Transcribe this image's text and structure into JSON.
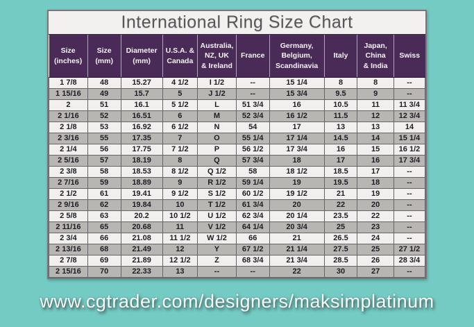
{
  "title": "International Ring Size Chart",
  "footer": {
    "url": "www.cgtrader.com/designers/maksimplatinum"
  },
  "colors": {
    "page-bg": "#74cbc4",
    "title-bg": "#f2f1ef",
    "title-text": "#57575a",
    "header-bg": "#4a2b58",
    "header-text": "#f5f2f7",
    "row-light": "#f1f0ee",
    "row-dark": "#b7b6b3",
    "cell-text": "#1d1d26",
    "grid-line": "#646467",
    "footer-text": "#fbfdfc"
  },
  "chart_data": {
    "type": "table",
    "title": "International Ring Size Chart",
    "columns": [
      "Size\n(inches)",
      "Size\n(mm)",
      "Diameter\n(mm)",
      "U.S.A. &\nCanada",
      "Australia,\nNZ, UK\n& Ireland",
      "France",
      "Germany,\nBelgium,\nScandinavia",
      "Italy",
      "Japan,\nChina\n& India",
      "Swiss"
    ],
    "rows": [
      [
        "1 7/8",
        "48",
        "15.27",
        "4 1/2",
        "I 1/2",
        "--",
        "15 1/4",
        "8",
        "8",
        "--"
      ],
      [
        "1 15/16",
        "49",
        "15.7",
        "5",
        "J 1/2",
        "--",
        "15 3/4",
        "9.5",
        "9",
        "--"
      ],
      [
        "2",
        "51",
        "16.1",
        "5 1/2",
        "L",
        "51 3/4",
        "16",
        "10.5",
        "11",
        "11 3/4"
      ],
      [
        "2 1/16",
        "52",
        "16.51",
        "6",
        "M",
        "52 3/4",
        "16 1/2",
        "11.5",
        "12",
        "12 3/4"
      ],
      [
        "2 1/8",
        "53",
        "16.92",
        "6 1/2",
        "N",
        "54",
        "17",
        "13",
        "13",
        "14"
      ],
      [
        "2 3/16",
        "55",
        "17.35",
        "7",
        "O",
        "55 1/4",
        "17 1/4",
        "14.5",
        "14",
        "15 1/4"
      ],
      [
        "2 1/4",
        "56",
        "17.75",
        "7 1/2",
        "P",
        "56 1/2",
        "17 3/4",
        "16",
        "15",
        "16 1/2"
      ],
      [
        "2 5/16",
        "57",
        "18.19",
        "8",
        "Q",
        "57 3/4",
        "18",
        "17",
        "16",
        "17 3/4"
      ],
      [
        "2 3/8",
        "58",
        "18.53",
        "8 1/2",
        "Q 1/2",
        "58",
        "18 1/2",
        "18.5",
        "17",
        "--"
      ],
      [
        "2 7/16",
        "59",
        "18.89",
        "9",
        "R 1/2",
        "59 1/4",
        "19",
        "19.5",
        "18",
        "--"
      ],
      [
        "2 1/2",
        "61",
        "19.41",
        "9 1/2",
        "S 1/2",
        "60 1/2",
        "19 1/2",
        "21",
        "19",
        "--"
      ],
      [
        "2 9/16",
        "62",
        "19.84",
        "10",
        "T 1/2",
        "61 3/4",
        "20",
        "22",
        "20",
        "--"
      ],
      [
        "2 5/8",
        "63",
        "20.2",
        "10 1/2",
        "U 1/2",
        "62 3/4",
        "20 1/4",
        "23.5",
        "22",
        "--"
      ],
      [
        "2 11/16",
        "65",
        "20.68",
        "11",
        "V 1/2",
        "64 1/4",
        "20 3/4",
        "25",
        "23",
        "--"
      ],
      [
        "2 3/4",
        "66",
        "21.08",
        "11 1/2",
        "W 1/2",
        "66",
        "21",
        "26.5",
        "24",
        "--"
      ],
      [
        "2 13/16",
        "68",
        "21.49",
        "12",
        "Y",
        "67 1/2",
        "21 1/4",
        "27.5",
        "25",
        "27 1/2"
      ],
      [
        "2 7/8",
        "69",
        "21.89",
        "12 1/2",
        "Z",
        "68 3/4",
        "21 3/4",
        "28.5",
        "26",
        "28 3/4"
      ],
      [
        "2 15/16",
        "70",
        "22.33",
        "13",
        "--",
        "--",
        "22",
        "30",
        "27",
        "--"
      ]
    ],
    "column_widths_pct": [
      10.3,
      8.8,
      11.1,
      9.3,
      10.3,
      8.8,
      14.6,
      8.8,
      9.7,
      8.3
    ]
  }
}
